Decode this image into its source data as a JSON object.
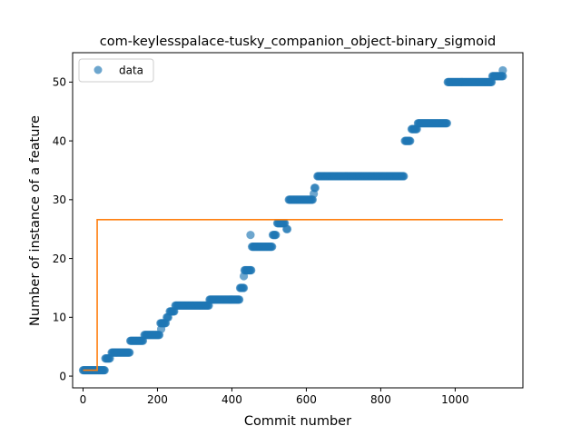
{
  "chart_data": {
    "type": "scatter",
    "title": "com-keylesspalace-tusky_companion_object-binary_sigmoid",
    "xlabel": "Commit number",
    "ylabel": "Number of instance of a feature",
    "xlim": [
      -28,
      1182
    ],
    "ylim": [
      -2,
      55
    ],
    "xticks": [
      0,
      200,
      400,
      600,
      800,
      1000
    ],
    "yticks": [
      0,
      10,
      20,
      30,
      40,
      50
    ],
    "grid": false,
    "legend": {
      "placement": "upper-left",
      "entries": [
        {
          "label": "data",
          "marker": "circle",
          "color": "#1f77b4"
        }
      ]
    },
    "series": [
      {
        "name": "data",
        "kind": "scatter",
        "color": "#1f77b4",
        "alpha": 0.65,
        "steps": [
          [
            0,
            1
          ],
          [
            58,
            1
          ],
          [
            60,
            3
          ],
          [
            72,
            3
          ],
          [
            77,
            4
          ],
          [
            125,
            4
          ],
          [
            127,
            6
          ],
          [
            162,
            6
          ],
          [
            165,
            7
          ],
          [
            205,
            7
          ],
          [
            208,
            9
          ],
          [
            222,
            9
          ],
          [
            225,
            10
          ],
          [
            230,
            10
          ],
          [
            233,
            11
          ],
          [
            245,
            11
          ],
          [
            248,
            12
          ],
          [
            338,
            12
          ],
          [
            340,
            13
          ],
          [
            420,
            13
          ],
          [
            422,
            15
          ],
          [
            432,
            15
          ],
          [
            434,
            18
          ],
          [
            452,
            18
          ],
          [
            454,
            22
          ],
          [
            508,
            22
          ],
          [
            510,
            24
          ],
          [
            518,
            24
          ],
          [
            522,
            26
          ],
          [
            543,
            26
          ],
          [
            547,
            25
          ],
          [
            550,
            25
          ],
          [
            553,
            30
          ],
          [
            618,
            30
          ],
          [
            622,
            32
          ],
          [
            625,
            32
          ],
          [
            630,
            34
          ],
          [
            863,
            34
          ],
          [
            865,
            40
          ],
          [
            880,
            40
          ],
          [
            883,
            42
          ],
          [
            897,
            42
          ],
          [
            900,
            43
          ],
          [
            978,
            43
          ],
          [
            980,
            50
          ],
          [
            1098,
            50
          ],
          [
            1100,
            51
          ],
          [
            1128,
            51
          ]
        ],
        "extra_points": [
          [
            432,
            17
          ],
          [
            450,
            24
          ],
          [
            620,
            31
          ],
          [
            210,
            8
          ],
          [
            1128,
            52
          ]
        ]
      },
      {
        "name": "",
        "kind": "step-line",
        "color": "#ff7f0e",
        "points": [
          [
            0,
            1
          ],
          [
            38,
            1
          ],
          [
            38,
            26.6
          ],
          [
            1128,
            26.6
          ]
        ]
      }
    ]
  }
}
